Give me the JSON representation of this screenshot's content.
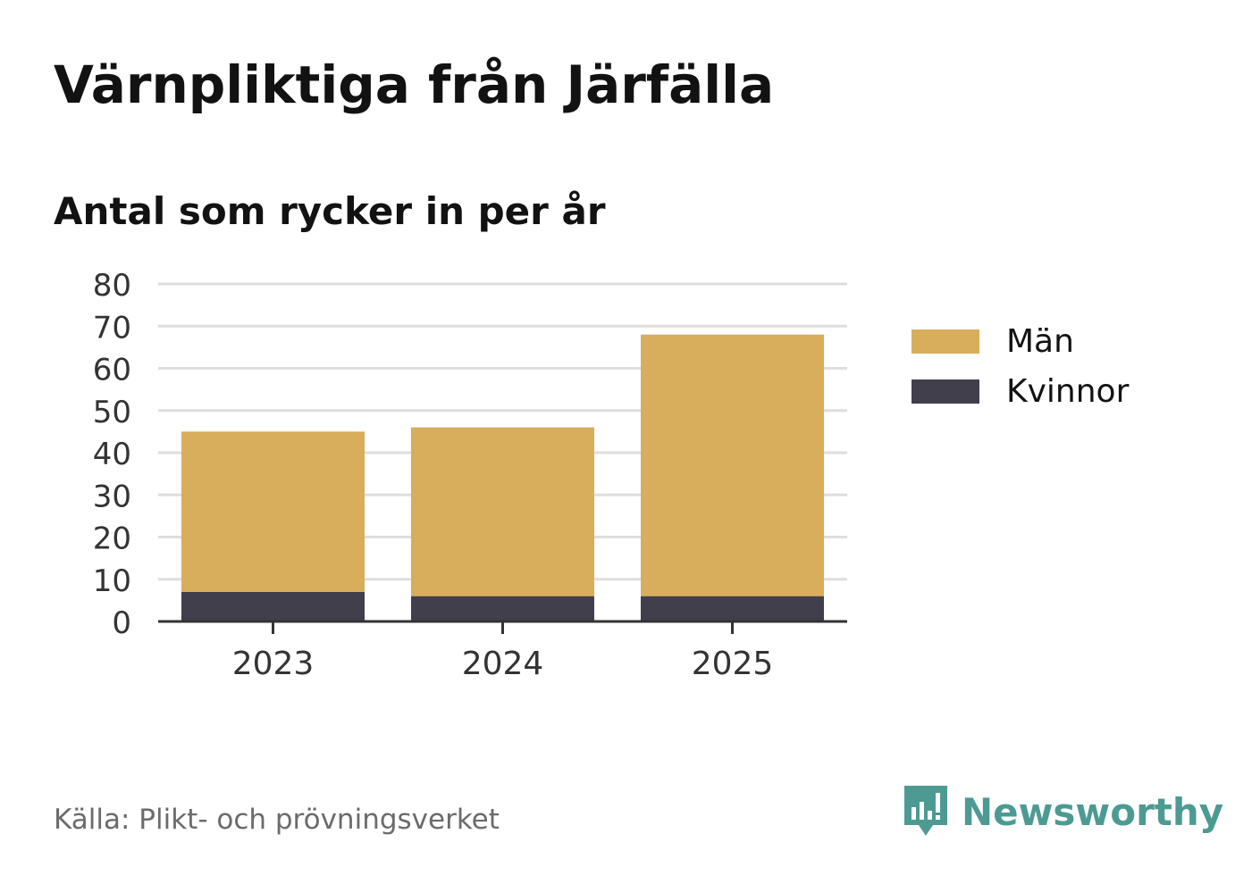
{
  "header": {
    "title": "Värnpliktiga från Järfälla",
    "subtitle": "Antal som rycker in per år"
  },
  "chart_data": {
    "type": "bar",
    "stacked": true,
    "categories": [
      "2023",
      "2024",
      "2025"
    ],
    "series": [
      {
        "name": "Kvinnor",
        "values": [
          7,
          6,
          6
        ],
        "color": "#413f4c"
      },
      {
        "name": "Män",
        "values": [
          38,
          40,
          62
        ],
        "color": "#d8ad5b"
      }
    ],
    "ylim": [
      0,
      80
    ],
    "yticks": [
      "0",
      "10",
      "20",
      "30",
      "40",
      "50",
      "60",
      "70",
      "80"
    ],
    "grid": true,
    "legend_position": "right"
  },
  "legend": {
    "items": [
      {
        "label": "Män",
        "color": "#d8ad5b"
      },
      {
        "label": "Kvinnor",
        "color": "#413f4c"
      }
    ]
  },
  "footer": {
    "source": "Källa: Plikt- och prövningsverket",
    "brand": "Newsworthy",
    "brand_color": "#4d9a93"
  }
}
